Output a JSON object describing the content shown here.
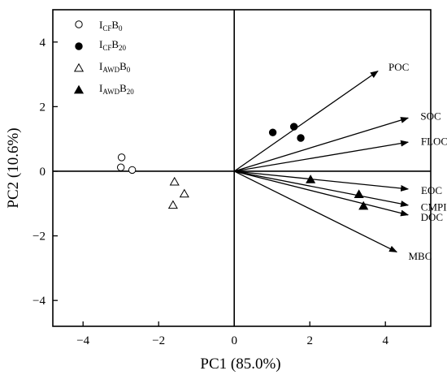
{
  "chart_data": {
    "type": "scatter",
    "title": "",
    "xlabel": "PC1 (85.0%)",
    "ylabel": "PC2 (10.6%)",
    "xlim": [
      -4.8,
      5.2
    ],
    "ylim": [
      -4.8,
      5.0
    ],
    "xticks": [
      -4,
      -2,
      0,
      2,
      4
    ],
    "yticks": [
      -4,
      -2,
      0,
      2,
      4
    ],
    "grid": false,
    "reference_lines": {
      "x": 0,
      "y": 0
    },
    "legend": {
      "placement": "top-left",
      "entries": [
        {
          "main": "I",
          "sub1": "CF",
          "mid": "B",
          "sub2": "0",
          "marker": "circle-open"
        },
        {
          "main": "I",
          "sub1": "CF",
          "mid": "B",
          "sub2": "20",
          "marker": "circle-filled"
        },
        {
          "main": "I",
          "sub1": "AWD",
          "mid": "B",
          "sub2": "0",
          "marker": "triangle-open"
        },
        {
          "main": "I",
          "sub1": "AWD",
          "mid": "B",
          "sub2": "20",
          "marker": "triangle-filled"
        }
      ]
    },
    "series": [
      {
        "marker": "circle-open",
        "points": [
          [
            -2.98,
            0.43
          ],
          [
            -3.0,
            0.12
          ],
          [
            -2.7,
            0.04
          ]
        ]
      },
      {
        "marker": "circle-filled",
        "points": [
          [
            1.02,
            1.2
          ],
          [
            1.58,
            1.38
          ],
          [
            1.76,
            1.03
          ]
        ]
      },
      {
        "marker": "triangle-open",
        "points": [
          [
            -1.58,
            -0.33
          ],
          [
            -1.32,
            -0.7
          ],
          [
            -1.62,
            -1.05
          ]
        ]
      },
      {
        "marker": "triangle-filled",
        "points": [
          [
            2.02,
            -0.26
          ],
          [
            3.3,
            -0.72
          ],
          [
            3.42,
            -1.08
          ]
        ]
      }
    ],
    "loadings": [
      {
        "label": "POC",
        "x": 3.8,
        "y": 3.1
      },
      {
        "label": "SOC",
        "x": 4.6,
        "y": 1.65
      },
      {
        "label": "FLOC",
        "x": 4.6,
        "y": 0.9
      },
      {
        "label": "EOC",
        "x": 4.6,
        "y": -0.55
      },
      {
        "label": "CMPI",
        "x": 4.6,
        "y": -1.05
      },
      {
        "label": "DOC",
        "x": 4.6,
        "y": -1.35
      },
      {
        "label": "MBC",
        "x": 4.3,
        "y": -2.5
      }
    ]
  }
}
